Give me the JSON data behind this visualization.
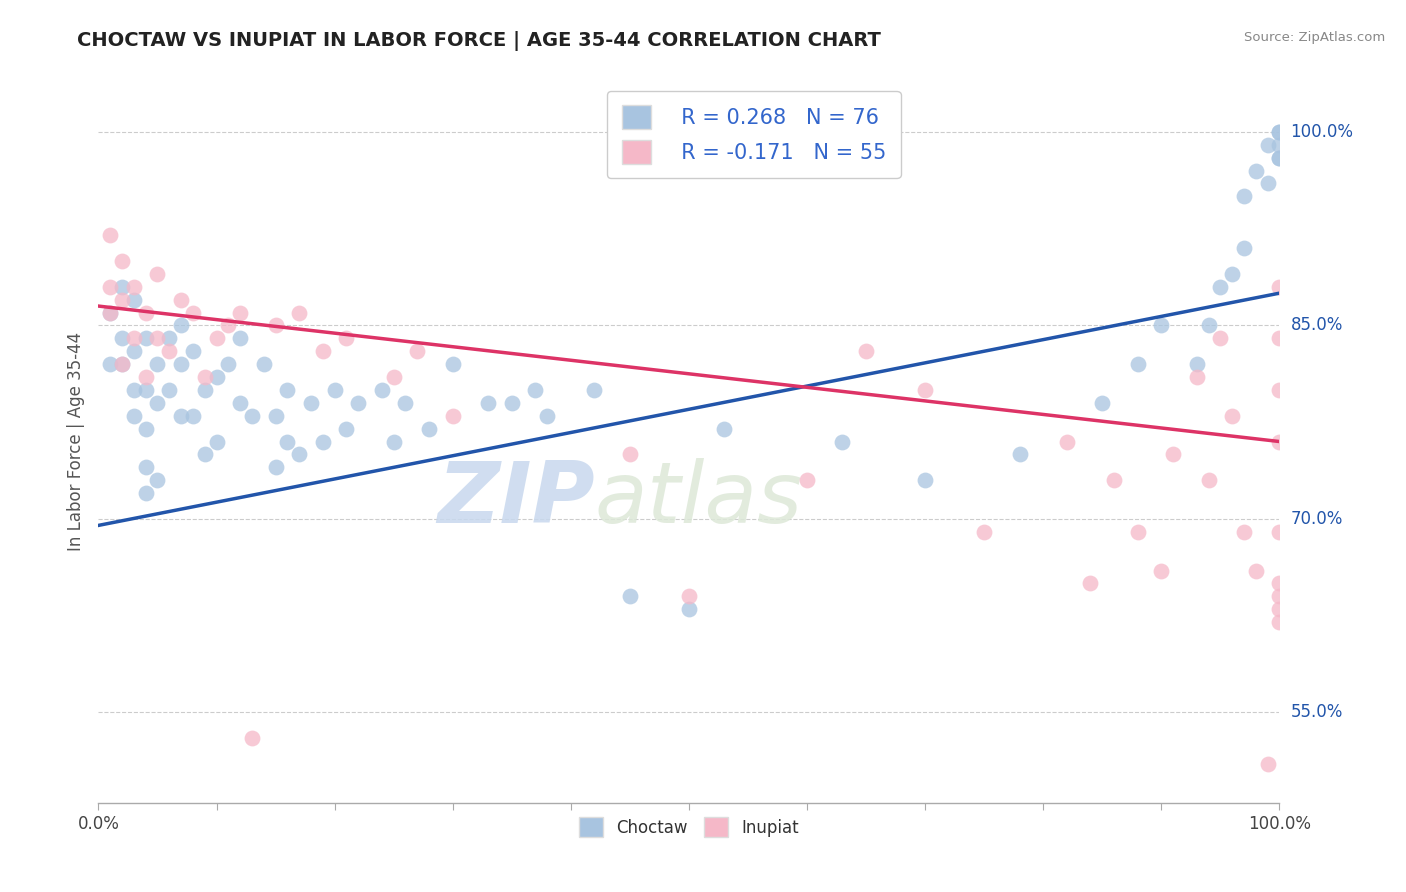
{
  "title": "CHOCTAW VS INUPIAT IN LABOR FORCE | AGE 35-44 CORRELATION CHART",
  "source": "Source: ZipAtlas.com",
  "ylabel": "In Labor Force | Age 35-44",
  "choctaw_R": 0.268,
  "choctaw_N": 76,
  "inupiat_R": -0.171,
  "inupiat_N": 55,
  "choctaw_color": "#a8c4e0",
  "inupiat_color": "#f5b8c8",
  "choctaw_line_color": "#2255aa",
  "inupiat_line_color": "#dd3366",
  "bg_color": "#ffffff",
  "watermark_zip": "ZIP",
  "watermark_atlas": "atlas",
  "xlim": [
    0.0,
    1.0
  ],
  "ylim": [
    0.48,
    1.04
  ],
  "yticks": [
    0.55,
    0.7,
    0.85,
    1.0
  ],
  "ytick_labels": [
    "55.0%",
    "70.0%",
    "85.0%",
    "100.0%"
  ],
  "blue_line_y0": 0.695,
  "blue_line_y1": 0.875,
  "pink_line_y0": 0.865,
  "pink_line_y1": 0.76,
  "choctaw_x": [
    0.01,
    0.01,
    0.02,
    0.02,
    0.02,
    0.03,
    0.03,
    0.03,
    0.03,
    0.04,
    0.04,
    0.04,
    0.04,
    0.04,
    0.05,
    0.05,
    0.05,
    0.06,
    0.06,
    0.07,
    0.07,
    0.07,
    0.08,
    0.08,
    0.09,
    0.09,
    0.1,
    0.1,
    0.11,
    0.12,
    0.12,
    0.13,
    0.14,
    0.15,
    0.15,
    0.16,
    0.16,
    0.17,
    0.18,
    0.19,
    0.2,
    0.21,
    0.22,
    0.24,
    0.25,
    0.26,
    0.28,
    0.3,
    0.33,
    0.35,
    0.37,
    0.38,
    0.42,
    0.45,
    0.5,
    0.53,
    0.63,
    0.7,
    0.78,
    0.85,
    0.88,
    0.9,
    0.93,
    0.94,
    0.95,
    0.96,
    0.97,
    0.97,
    0.98,
    0.99,
    0.99,
    1.0,
    1.0,
    1.0,
    1.0,
    1.0
  ],
  "choctaw_y": [
    0.82,
    0.86,
    0.88,
    0.82,
    0.84,
    0.87,
    0.83,
    0.8,
    0.78,
    0.84,
    0.8,
    0.77,
    0.74,
    0.72,
    0.82,
    0.79,
    0.73,
    0.84,
    0.8,
    0.85,
    0.82,
    0.78,
    0.83,
    0.78,
    0.8,
    0.75,
    0.81,
    0.76,
    0.82,
    0.79,
    0.84,
    0.78,
    0.82,
    0.78,
    0.74,
    0.8,
    0.76,
    0.75,
    0.79,
    0.76,
    0.8,
    0.77,
    0.79,
    0.8,
    0.76,
    0.79,
    0.77,
    0.82,
    0.79,
    0.79,
    0.8,
    0.78,
    0.8,
    0.64,
    0.63,
    0.77,
    0.76,
    0.73,
    0.75,
    0.79,
    0.82,
    0.85,
    0.82,
    0.85,
    0.88,
    0.89,
    0.95,
    0.91,
    0.97,
    0.96,
    0.99,
    0.98,
    1.0,
    0.99,
    0.98,
    1.0
  ],
  "inupiat_x": [
    0.01,
    0.01,
    0.01,
    0.02,
    0.02,
    0.02,
    0.03,
    0.03,
    0.04,
    0.04,
    0.05,
    0.05,
    0.06,
    0.07,
    0.08,
    0.09,
    0.1,
    0.11,
    0.12,
    0.13,
    0.15,
    0.17,
    0.19,
    0.21,
    0.25,
    0.27,
    0.3,
    0.45,
    0.5,
    0.6,
    0.65,
    0.7,
    0.75,
    0.82,
    0.84,
    0.86,
    0.88,
    0.9,
    0.91,
    0.93,
    0.94,
    0.95,
    0.96,
    0.97,
    0.98,
    0.99,
    1.0,
    1.0,
    1.0,
    1.0,
    1.0,
    1.0,
    1.0,
    1.0,
    1.0
  ],
  "inupiat_y": [
    0.88,
    0.92,
    0.86,
    0.9,
    0.87,
    0.82,
    0.88,
    0.84,
    0.86,
    0.81,
    0.89,
    0.84,
    0.83,
    0.87,
    0.86,
    0.81,
    0.84,
    0.85,
    0.86,
    0.53,
    0.85,
    0.86,
    0.83,
    0.84,
    0.81,
    0.83,
    0.78,
    0.75,
    0.64,
    0.73,
    0.83,
    0.8,
    0.69,
    0.76,
    0.65,
    0.73,
    0.69,
    0.66,
    0.75,
    0.81,
    0.73,
    0.84,
    0.78,
    0.69,
    0.66,
    0.51,
    0.88,
    0.84,
    0.8,
    0.76,
    0.69,
    0.64,
    0.63,
    0.65,
    0.62
  ]
}
